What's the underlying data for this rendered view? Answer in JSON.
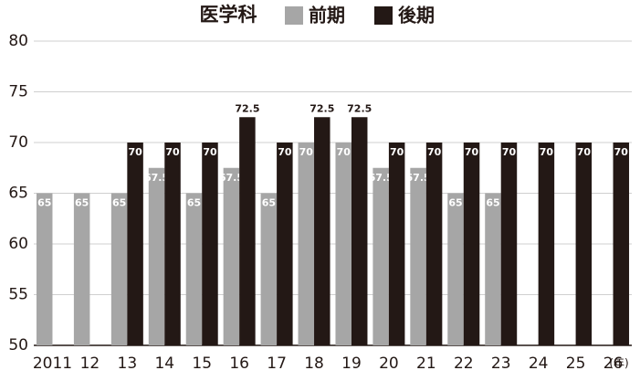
{
  "chart_data": {
    "type": "bar",
    "title": "医学科",
    "categories": [
      "2011",
      "12",
      "13",
      "14",
      "15",
      "16",
      "17",
      "18",
      "19",
      "20",
      "21",
      "22",
      "23",
      "24",
      "25",
      "26"
    ],
    "series": [
      {
        "name": "前期",
        "color": "#a6a6a6",
        "values": [
          65,
          65,
          65,
          67.5,
          65,
          67.5,
          65,
          70,
          70,
          67.5,
          67.5,
          65,
          65,
          null,
          null,
          null
        ]
      },
      {
        "name": "後期",
        "color": "#231815",
        "values": [
          null,
          null,
          70,
          70,
          70,
          72.5,
          70,
          72.5,
          72.5,
          70,
          70,
          70,
          70,
          70,
          70,
          70
        ]
      }
    ],
    "x_unit": "(年)",
    "ylim": [
      50,
      80
    ],
    "yticks": [
      50,
      55,
      60,
      65,
      70,
      75,
      80
    ],
    "grid": true
  }
}
